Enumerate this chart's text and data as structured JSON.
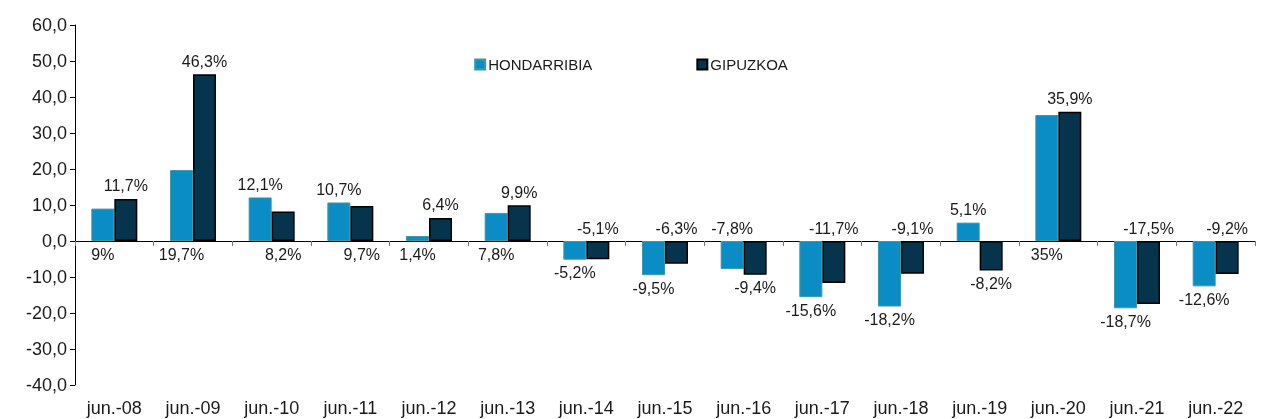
{
  "chart_data": {
    "type": "bar",
    "categories": [
      "jun.-08",
      "jun.-09",
      "jun.-10",
      "jun.-11",
      "jun.-12",
      "jun.-13",
      "jun.-14",
      "jun.-15",
      "jun.-16",
      "jun.-17",
      "jun.-18",
      "jun.-19",
      "jun.-20",
      "jun.-21",
      "jun.-22"
    ],
    "series": [
      {
        "name": "HONDARRIBIA",
        "color": "#0a8cc4",
        "values": [
          9,
          19.7,
          12.1,
          10.7,
          1.4,
          7.8,
          -5.2,
          -9.5,
          -7.8,
          -15.6,
          -18.2,
          5.1,
          35,
          -18.7,
          -12.6
        ],
        "value_labels": [
          "9%",
          "19,7%",
          "12,1%",
          "10,7%",
          "1,4%",
          "7,8%",
          "-5,2%",
          "-9,5%",
          "-7,8%",
          "-15,6%",
          "-18,2%",
          "5,1%",
          "35%",
          "-18,7%",
          "-12,6%"
        ]
      },
      {
        "name": "GIPUZKOA",
        "color": "#05344c",
        "values": [
          11.7,
          46.3,
          8.2,
          9.7,
          6.4,
          9.9,
          -5.1,
          -6.3,
          -9.4,
          -11.7,
          -9.1,
          -8.2,
          35.9,
          -17.5,
          -9.2
        ],
        "value_labels": [
          "11,7%",
          "46,3%",
          "8,2%",
          "9,7%",
          "6,4%",
          "9,9%",
          "-5,1%",
          "-6,3%",
          "-9,4%",
          "-11,7%",
          "-9,1%",
          "-8,2%",
          "35,9%",
          "-17,5%",
          "-9,2%"
        ]
      }
    ],
    "ylim": [
      -40,
      60
    ],
    "yticks": [
      {
        "value": -40,
        "label": "-40,0"
      },
      {
        "value": -30,
        "label": "-30,0"
      },
      {
        "value": -20,
        "label": "-20,0"
      },
      {
        "value": -10,
        "label": "-10,0"
      },
      {
        "value": 0,
        "label": "0,0"
      },
      {
        "value": 10,
        "label": "10,0"
      },
      {
        "value": 20,
        "label": "20,0"
      },
      {
        "value": 30,
        "label": "30,0"
      },
      {
        "value": 40,
        "label": "40,0"
      },
      {
        "value": 50,
        "label": "50,0"
      },
      {
        "value": 60,
        "label": "60,0"
      }
    ],
    "legend": "top"
  }
}
